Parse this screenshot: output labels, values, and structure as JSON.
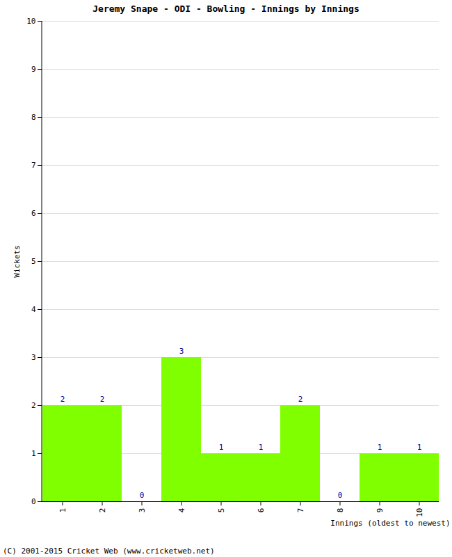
{
  "chart_data": {
    "type": "bar",
    "title": "Jeremy Snape - ODI - Bowling - Innings by Innings",
    "x_label": "Innings (oldest to newest)",
    "y_label": "Wickets",
    "caption": "(C) 2001-2015 Cricket Web (www.cricketweb.net)",
    "categories": [
      "1",
      "2",
      "3",
      "4",
      "5",
      "6",
      "7",
      "8",
      "9",
      "10"
    ],
    "values": [
      2,
      2,
      0,
      3,
      1,
      1,
      2,
      0,
      1,
      1
    ],
    "color": "#80ff00",
    "ylim": [
      0,
      10
    ],
    "yticks": [
      0,
      1,
      2,
      3,
      4,
      5,
      6,
      7,
      8,
      9,
      10
    ],
    "grid": true,
    "data_labels": true
  }
}
